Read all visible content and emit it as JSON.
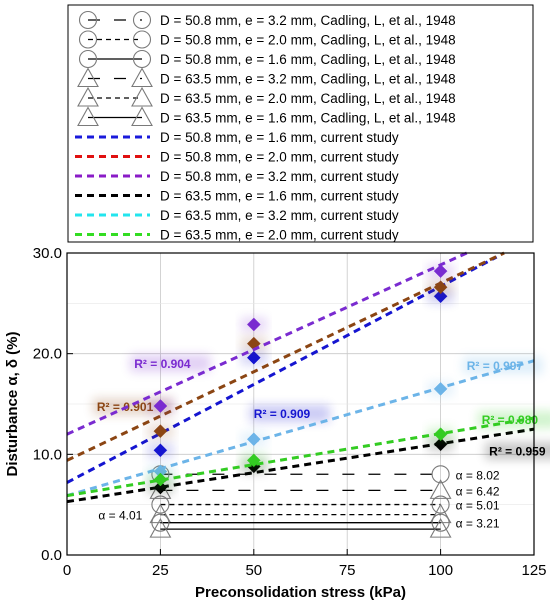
{
  "chart_data": {
    "type": "scatter",
    "xlabel": "Preconsolidation stress (kPa)",
    "ylabel": "Disturbance α, δ (%)",
    "xlim": [
      0,
      125
    ],
    "ylim": [
      0,
      30
    ],
    "x_ticks": [
      0,
      25,
      50,
      75,
      100,
      125
    ],
    "y_ticks": [
      0.0,
      10.0,
      20.0,
      30.0
    ],
    "x_tick_labels": [
      "0",
      "25",
      "50",
      "75",
      "100",
      "125"
    ],
    "y_tick_labels": [
      "0.0",
      "10.0",
      "20.0",
      "30.0"
    ],
    "grid": true,
    "legend_position": "top",
    "legend": [
      {
        "label": "D = 50.8 mm, e = 3.2 mm, Cadling, L, et al., 1948",
        "marker": "circle",
        "dash": "long-gap",
        "color": "#000000"
      },
      {
        "label": "D = 50.8 mm, e = 2.0 mm, Cadling, L, et al., 1948",
        "marker": "circle",
        "dash": "dashed",
        "color": "#000000"
      },
      {
        "label": "D = 50.8 mm, e = 1.6 mm, Cadling, L, et al., 1948",
        "marker": "circle",
        "dash": "solid",
        "color": "#000000"
      },
      {
        "label": "D = 63.5 mm, e = 3.2 mm, Cadling, L, et al., 1948",
        "marker": "triangle",
        "dash": "long-gap",
        "color": "#000000"
      },
      {
        "label": "D = 63.5 mm, e = 2.0 mm, Cadling, L, et al., 1948",
        "marker": "triangle",
        "dash": "dashed",
        "color": "#000000"
      },
      {
        "label": "D = 63.5 mm, e = 1.6 mm, Cadling, L, et al., 1948",
        "marker": "triangle",
        "dash": "solid",
        "color": "#000000"
      },
      {
        "label": "D = 50.8 mm, e = 1.6 mm, current study",
        "marker": "none",
        "dash": "short",
        "color": "#1a1adb"
      },
      {
        "label": "D = 50.8 mm, e = 2.0 mm, current study",
        "marker": "none",
        "dash": "short",
        "color": "#e01010"
      },
      {
        "label": "D = 50.8 mm, e = 3.2 mm, current study",
        "marker": "none",
        "dash": "short",
        "color": "#8a1bc7"
      },
      {
        "label": "D = 63.5 mm, e = 1.6 mm, current study",
        "marker": "none",
        "dash": "short",
        "color": "#000000"
      },
      {
        "label": "D = 63.5 mm, e = 3.2 mm, current study",
        "marker": "none",
        "dash": "short",
        "color": "#22e5ee"
      },
      {
        "label": "D = 63.5 mm, e = 2.0 mm, current study",
        "marker": "none",
        "dash": "short",
        "color": "#33dd22"
      }
    ],
    "series": [
      {
        "name": "D = 50.8 mm, e = 1.6 mm, current study",
        "color": "#1515d0",
        "x": [
          25,
          50,
          100
        ],
        "y": [
          10.4,
          19.6,
          25.7
        ],
        "fit": {
          "x": [
            0,
            115
          ],
          "y": [
            7.2,
            29.6
          ]
        },
        "r2_label": "R² = 0.909",
        "r2_at": [
          50,
          13.6
        ],
        "r2_color": "#1515d0"
      },
      {
        "name": "D = 50.8 mm, e = 2.0 mm, current study",
        "color": "#8b4513",
        "x": [
          25,
          50,
          100
        ],
        "y": [
          12.3,
          21.0,
          26.6
        ],
        "fit": {
          "x": [
            0,
            117
          ],
          "y": [
            9.4,
            30.0
          ]
        },
        "r2_label": "R² = 0.901",
        "r2_at": [
          8,
          14.3
        ],
        "r2_color": "#8b4513"
      },
      {
        "name": "D = 50.8 mm, e = 3.2 mm, current study",
        "color": "#7a2bd0",
        "x": [
          25,
          50,
          100
        ],
        "y": [
          14.8,
          22.9,
          28.2
        ],
        "fit": {
          "x": [
            0,
            107
          ],
          "y": [
            12.0,
            30.0
          ]
        },
        "r2_label": "R² = 0.904",
        "r2_at": [
          18,
          18.6
        ],
        "r2_color": "#7a2bd0"
      },
      {
        "name": "D = 63.5 mm, e = 1.6 mm, current study",
        "color": "#000000",
        "x": [
          25,
          50,
          100
        ],
        "y": [
          6.7,
          8.8,
          11.0
        ],
        "fit": {
          "x": [
            0,
            125
          ],
          "y": [
            5.3,
            12.5
          ]
        },
        "r2_label": "R² = 0.959",
        "r2_at": [
          113,
          9.9
        ],
        "r2_color": "#000000"
      },
      {
        "name": "D = 63.5 mm, e = 3.2 mm, current study",
        "color": "#6cb4e8",
        "x": [
          25,
          50,
          100
        ],
        "y": [
          8.3,
          11.5,
          16.5
        ],
        "fit": {
          "x": [
            0,
            125
          ],
          "y": [
            5.9,
            19.3
          ]
        },
        "r2_label": "R² = 0.997",
        "r2_at": [
          107,
          18.4
        ],
        "r2_color": "#6cb4e8"
      },
      {
        "name": "D = 63.5 mm, e = 2.0 mm, current study",
        "color": "#33cc22",
        "x": [
          25,
          50,
          100
        ],
        "y": [
          7.5,
          9.4,
          12.0
        ],
        "fit": {
          "x": [
            0,
            125
          ],
          "y": [
            5.9,
            13.6
          ]
        },
        "r2_label": "R² = 0.980",
        "r2_at": [
          111,
          13.0
        ],
        "r2_color": "#33cc22"
      }
    ],
    "reference_lines": [
      {
        "label": "α = 8.02",
        "y": 8.02,
        "marker": "circle",
        "dash": "long-gap",
        "x_start": 25,
        "x_end": 100
      },
      {
        "label": "α = 6.42",
        "y": 6.42,
        "marker": "triangle",
        "dash": "long-gap",
        "x_start": 25,
        "x_end": 100
      },
      {
        "label": "α = 5.01",
        "y": 5.01,
        "marker": "circle",
        "dash": "dashed",
        "x_start": 25,
        "x_end": 100
      },
      {
        "label": "α = 4.01",
        "y": 4.01,
        "marker": "triangle",
        "dash": "dashed",
        "x_start": 25,
        "x_end": 100
      },
      {
        "label": "α = 3.21",
        "y": 3.21,
        "marker": "circle",
        "dash": "solid",
        "x_start": 25,
        "x_end": 100
      },
      {
        "label": "",
        "y": 2.57,
        "marker": "triangle",
        "dash": "solid",
        "x_start": 25,
        "x_end": 100
      }
    ],
    "ref_label_positions": {
      "α = 8.02": "right",
      "α = 6.42": "right",
      "α = 5.01": "right",
      "α = 4.01": "left",
      "α = 3.21": "right"
    }
  }
}
